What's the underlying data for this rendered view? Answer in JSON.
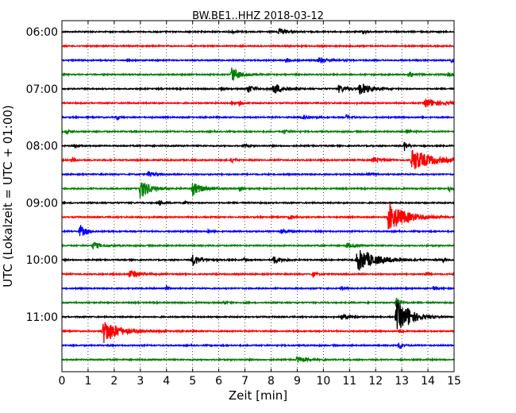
{
  "chart_data": {
    "type": "line",
    "title": "BW.BE1..HHZ 2018-03-12",
    "xlabel": "Zeit  [min]",
    "ylabel": "UTC (Lokalzeit = UTC + 01:00)",
    "xlim": [
      0,
      15
    ],
    "x_ticks": [
      "0",
      "1",
      "2",
      "3",
      "4",
      "5",
      "6",
      "7",
      "8",
      "9",
      "10",
      "11",
      "12",
      "13",
      "14",
      "15"
    ],
    "y_tick_labels": [
      "06:00",
      "07:00",
      "08:00",
      "09:00",
      "10:00",
      "11:00"
    ],
    "grid": "dotted-vertical",
    "trace_interval_min": 15,
    "trace_colors": [
      "#000000",
      "#ff0000",
      "#0000ff",
      "#008000"
    ],
    "traces": [
      {
        "start": "06:00",
        "color": "#000000",
        "events": [
          [
            8.3,
            0.4,
            0.25
          ],
          [
            11.5,
            0.25,
            0.15
          ],
          [
            6.5,
            0.2,
            0.15
          ]
        ]
      },
      {
        "start": "06:15",
        "color": "#ff0000",
        "events": []
      },
      {
        "start": "06:30",
        "color": "#0000ff",
        "events": [
          [
            9.8,
            0.4,
            0.35
          ],
          [
            8.6,
            0.3,
            0.15
          ],
          [
            14.9,
            0.3,
            0.1
          ]
        ]
      },
      {
        "start": "06:45",
        "color": "#008000",
        "events": [
          [
            6.5,
            1.0,
            0.3
          ],
          [
            14.8,
            0.4,
            0.1
          ],
          [
            13.3,
            0.3,
            0.15
          ]
        ]
      },
      {
        "start": "07:00",
        "color": "#000000",
        "events": [
          [
            7.1,
            0.6,
            0.25
          ],
          [
            8.1,
            0.8,
            0.3
          ],
          [
            10.6,
            0.5,
            0.3
          ],
          [
            11.4,
            0.9,
            0.35
          ],
          [
            6.1,
            0.3,
            0.1
          ]
        ]
      },
      {
        "start": "07:15",
        "color": "#ff0000",
        "events": [
          [
            13.9,
            0.6,
            0.6
          ],
          [
            6.8,
            0.3,
            0.1
          ],
          [
            6.5,
            0.35,
            0.1
          ]
        ]
      },
      {
        "start": "07:30",
        "color": "#0000ff",
        "events": [
          [
            9.2,
            0.35,
            0.25
          ],
          [
            2.1,
            0.25,
            0.1
          ],
          [
            10.9,
            0.3,
            0.15
          ]
        ]
      },
      {
        "start": "07:45",
        "color": "#008000",
        "events": [
          [
            0.2,
            0.4,
            0.1
          ],
          [
            8.5,
            0.3,
            0.15
          ],
          [
            13.2,
            0.3,
            0.15
          ]
        ]
      },
      {
        "start": "08:00",
        "color": "#000000",
        "events": [
          [
            13.1,
            0.7,
            0.12
          ],
          [
            0.5,
            0.3,
            0.1
          ],
          [
            7.0,
            0.25,
            0.1
          ]
        ]
      },
      {
        "start": "08:15",
        "color": "#ff0000",
        "events": [
          [
            13.4,
            1.6,
            0.7
          ],
          [
            11.9,
            0.4,
            0.3
          ],
          [
            0.4,
            0.3,
            0.1
          ],
          [
            6.5,
            0.3,
            0.1
          ]
        ]
      },
      {
        "start": "08:30",
        "color": "#0000ff",
        "events": [
          [
            3.3,
            0.4,
            0.2
          ],
          [
            11.7,
            0.3,
            0.15
          ]
        ]
      },
      {
        "start": "08:45",
        "color": "#008000",
        "events": [
          [
            3.0,
            1.4,
            0.35
          ],
          [
            5.0,
            0.9,
            0.35
          ],
          [
            6.8,
            0.4,
            0.1
          ],
          [
            14.8,
            0.4,
            0.1
          ]
        ]
      },
      {
        "start": "09:00",
        "color": "#000000",
        "events": [
          [
            3.7,
            0.4,
            0.12
          ],
          [
            4.7,
            0.3,
            0.1
          ]
        ]
      },
      {
        "start": "09:15",
        "color": "#ff0000",
        "events": [
          [
            12.5,
            2.0,
            0.65
          ],
          [
            8.7,
            0.3,
            0.15
          ]
        ]
      },
      {
        "start": "09:30",
        "color": "#0000ff",
        "events": [
          [
            0.7,
            0.9,
            0.2
          ],
          [
            8.4,
            0.3,
            0.25
          ],
          [
            5.6,
            0.25,
            0.1
          ]
        ]
      },
      {
        "start": "09:45",
        "color": "#008000",
        "events": [
          [
            1.2,
            0.5,
            0.25
          ],
          [
            10.9,
            0.4,
            0.2
          ]
        ]
      },
      {
        "start": "10:00",
        "color": "#000000",
        "events": [
          [
            11.3,
            1.6,
            0.7
          ],
          [
            5.0,
            0.8,
            0.3
          ],
          [
            8.1,
            0.5,
            0.3
          ],
          [
            7.0,
            0.3,
            0.1
          ],
          [
            14.6,
            0.3,
            0.1
          ]
        ]
      },
      {
        "start": "10:15",
        "color": "#ff0000",
        "events": [
          [
            2.6,
            0.6,
            0.3
          ],
          [
            9.6,
            0.4,
            0.1
          ],
          [
            13.9,
            0.35,
            0.1
          ]
        ]
      },
      {
        "start": "10:30",
        "color": "#0000ff",
        "events": [
          [
            4.0,
            0.3,
            0.1
          ],
          [
            10.7,
            0.3,
            0.1
          ],
          [
            14.2,
            0.3,
            0.1
          ]
        ]
      },
      {
        "start": "10:45",
        "color": "#008000",
        "events": [
          [
            12.8,
            0.9,
            0.12
          ],
          [
            6.2,
            0.3,
            0.1
          ]
        ]
      },
      {
        "start": "11:00",
        "color": "#000000",
        "events": [
          [
            12.8,
            2.2,
            0.45
          ],
          [
            10.7,
            0.4,
            0.3
          ],
          [
            13.2,
            0.6,
            0.2
          ]
        ]
      },
      {
        "start": "11:15",
        "color": "#ff0000",
        "events": [
          [
            1.6,
            1.7,
            0.55
          ],
          [
            13.0,
            0.3,
            0.1
          ]
        ]
      },
      {
        "start": "11:30",
        "color": "#0000ff",
        "events": [
          [
            12.9,
            0.7,
            0.1
          ]
        ]
      },
      {
        "start": "11:45",
        "color": "#008000",
        "events": [
          [
            9.0,
            0.4,
            0.35
          ]
        ]
      }
    ]
  }
}
